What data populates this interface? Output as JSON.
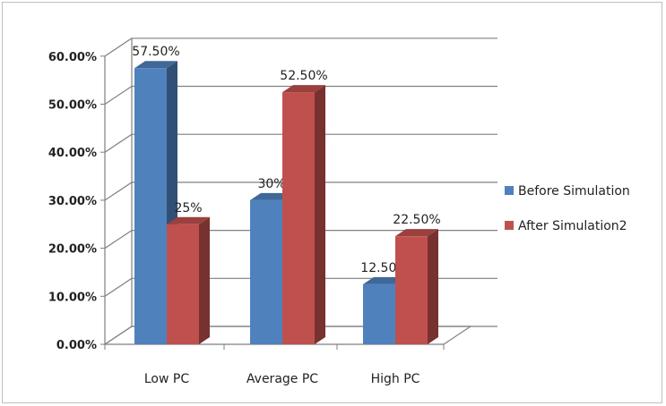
{
  "chart_data": {
    "type": "bar",
    "categories": [
      "Low PC",
      "Average PC",
      "High PC"
    ],
    "series": [
      {
        "name": "Before Simulation",
        "values": [
          57.5,
          30,
          12.5
        ],
        "labels": [
          "57.50%",
          "30%",
          "12.50%"
        ],
        "color": "#4f81bd"
      },
      {
        "name": "After Simulation2",
        "values": [
          25,
          52.5,
          22.5
        ],
        "labels": [
          "25%",
          "52.50%",
          "22.50%"
        ],
        "color": "#c0504d"
      }
    ],
    "yticks": [
      "0.00%",
      "10.00%",
      "20.00%",
      "30.00%",
      "40.00%",
      "50.00%",
      "60.00%"
    ],
    "ylim": [
      0,
      60
    ],
    "grid": true,
    "legend": "right",
    "title": "",
    "xlabel": "",
    "ylabel": ""
  }
}
